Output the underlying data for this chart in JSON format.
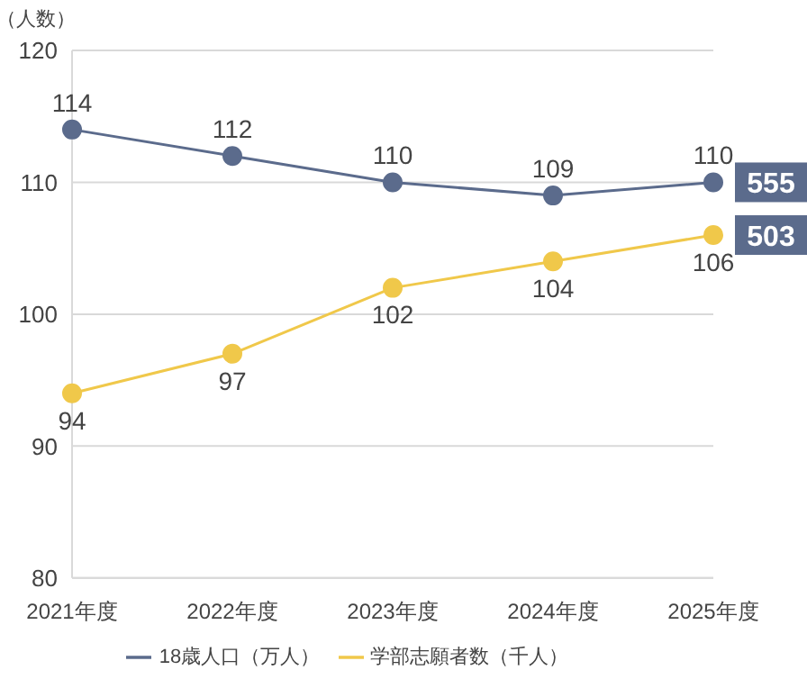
{
  "chart_data": {
    "type": "line",
    "ylabel": "（人数）",
    "categories": [
      "2021年度",
      "2022年度",
      "2023年度",
      "2024年度",
      "2025年度"
    ],
    "series": [
      {
        "name": "18歳人口（万人）",
        "color": "#5b6b8c",
        "values": [
          114,
          112,
          110,
          109,
          110
        ]
      },
      {
        "name": "学部志願者数（千人）",
        "color": "#f0c84a",
        "values": [
          94,
          97,
          102,
          104,
          106
        ]
      }
    ],
    "ylim": [
      80,
      120
    ],
    "yticks": [
      80,
      90,
      100,
      110,
      120
    ],
    "grid": "y",
    "legend": "bottom",
    "marker": "circle",
    "line_style": "solid",
    "data_labels": true,
    "annotations": [
      {
        "text": "555",
        "x": "2025年度",
        "y": 110
      },
      {
        "text": "503",
        "x": "2025年度",
        "y": 106
      }
    ]
  }
}
